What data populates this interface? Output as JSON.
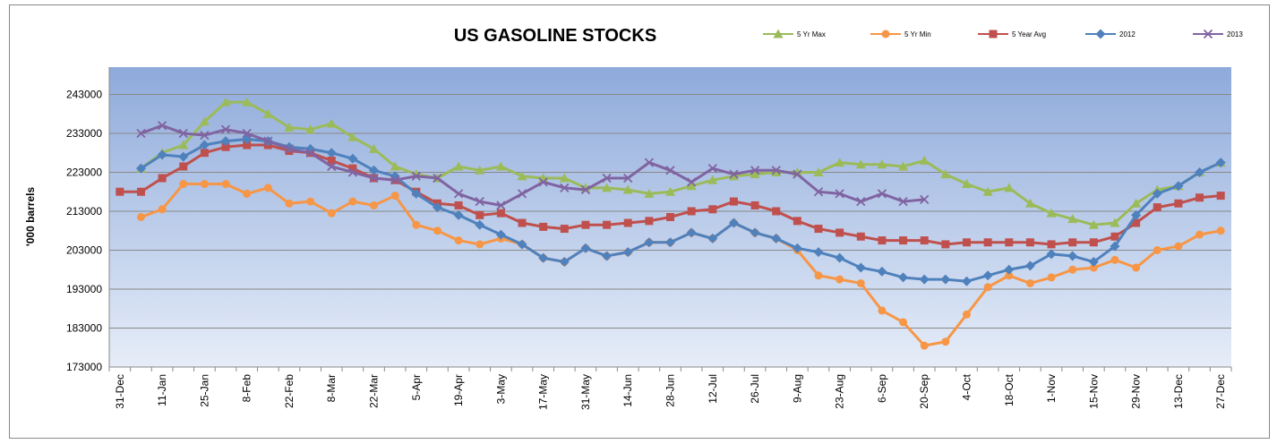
{
  "chart_data": {
    "type": "line",
    "title": "US GASOLINE STOCKS",
    "y_label": "'000 barrels",
    "categories": [
      "31-Dec",
      null,
      "11-Jan",
      null,
      "25-Jan",
      null,
      "8-Feb",
      null,
      "22-Feb",
      null,
      "8-Mar",
      null,
      "22-Mar",
      null,
      "5-Apr",
      null,
      "19-Apr",
      null,
      "3-May",
      null,
      "17-May",
      null,
      "31-May",
      null,
      "14-Jun",
      null,
      "28-Jun",
      null,
      "12-Jul",
      null,
      "26-Jul",
      null,
      "9-Aug",
      null,
      "23-Aug",
      null,
      "6-Sep",
      null,
      "20-Sep",
      null,
      "4-Oct",
      null,
      "18-Oct",
      null,
      "1-Nov",
      null,
      "15-Nov",
      null,
      "29-Nov",
      null,
      "13-Dec",
      null,
      "27-Dec"
    ],
    "ylim": [
      173000,
      250000
    ],
    "yticks": [
      173000,
      183000,
      193000,
      203000,
      213000,
      223000,
      233000,
      243000
    ],
    "grid": true,
    "series": [
      {
        "name": "5 Yr Max",
        "color": "#9bbb59",
        "marker": "triangle",
        "values": [
          null,
          224000,
          228000,
          230000,
          236000,
          241000,
          241000,
          238000,
          234500,
          234000,
          235500,
          232000,
          229000,
          224500,
          222500,
          221500,
          224500,
          223500,
          224500,
          222000,
          221500,
          221500,
          219000,
          219000,
          218500,
          217500,
          218000,
          219500,
          221000,
          222000,
          222500,
          223000,
          223000,
          223000,
          225500,
          225000,
          225000,
          224500,
          226000,
          222500,
          220000,
          218000,
          219000,
          215000,
          212500,
          211000,
          209500,
          210000,
          215000,
          218500,
          219500,
          223000,
          225500
        ]
      },
      {
        "name": "5 Yr Min",
        "color": "#f79646",
        "marker": "circle",
        "values": [
          null,
          211500,
          213500,
          220000,
          220000,
          220000,
          217500,
          219000,
          215000,
          215500,
          212500,
          215500,
          214500,
          217000,
          209500,
          208000,
          205500,
          204500,
          206000,
          204500,
          201000,
          200000,
          203500,
          201500,
          202500,
          205000,
          205000,
          207500,
          206000,
          210000,
          207500,
          206000,
          203000,
          196500,
          195500,
          194500,
          187500,
          184500,
          178500,
          179500,
          186500,
          193500,
          196500,
          194500,
          196000,
          198000,
          198500,
          200500,
          198500,
          203000,
          204000,
          207000,
          208000
        ]
      },
      {
        "name": "5 Year Avg",
        "color": "#c0504d",
        "marker": "square",
        "values": [
          218000,
          218000,
          221500,
          224500,
          228000,
          229500,
          230000,
          230000,
          228500,
          228000,
          226000,
          224000,
          221500,
          221000,
          218000,
          215000,
          214500,
          212000,
          212500,
          210000,
          209000,
          208500,
          209500,
          209500,
          210000,
          210500,
          211500,
          213000,
          213500,
          215500,
          214500,
          213000,
          210500,
          208500,
          207500,
          206500,
          205500,
          205500,
          205500,
          204500,
          205000,
          205000,
          205000,
          205000,
          204500,
          205000,
          205000,
          206500,
          210000,
          214000,
          215000,
          216500,
          217000
        ]
      },
      {
        "name": "2012",
        "color": "#4f81bd",
        "marker": "diamond",
        "values": [
          null,
          224000,
          227500,
          227000,
          230000,
          231000,
          231500,
          231000,
          229500,
          229000,
          228000,
          226500,
          223500,
          222000,
          217500,
          214000,
          212000,
          209500,
          207000,
          204500,
          201000,
          200000,
          203500,
          201500,
          202500,
          205000,
          205000,
          207500,
          206000,
          210000,
          207500,
          206000,
          203500,
          202500,
          201000,
          198500,
          197500,
          196000,
          195500,
          195500,
          195000,
          196500,
          198000,
          199000,
          202000,
          201500,
          200000,
          204000,
          212000,
          217500,
          219500,
          223000,
          225500
        ]
      },
      {
        "name": "2013",
        "color": "#8064a2",
        "marker": "x",
        "values": [
          null,
          233000,
          235000,
          233000,
          232500,
          234000,
          233000,
          231000,
          229000,
          228000,
          224500,
          223000,
          221500,
          221000,
          222000,
          221500,
          217500,
          215500,
          214500,
          217500,
          220500,
          219000,
          218500,
          221500,
          221500,
          225500,
          223500,
          220500,
          224000,
          222500,
          223500,
          223500,
          222500,
          218000,
          217500,
          215500,
          217500,
          215500,
          216000,
          null,
          null,
          null,
          null,
          null,
          null,
          null,
          null,
          null,
          null,
          null,
          null,
          null,
          null
        ]
      }
    ]
  }
}
